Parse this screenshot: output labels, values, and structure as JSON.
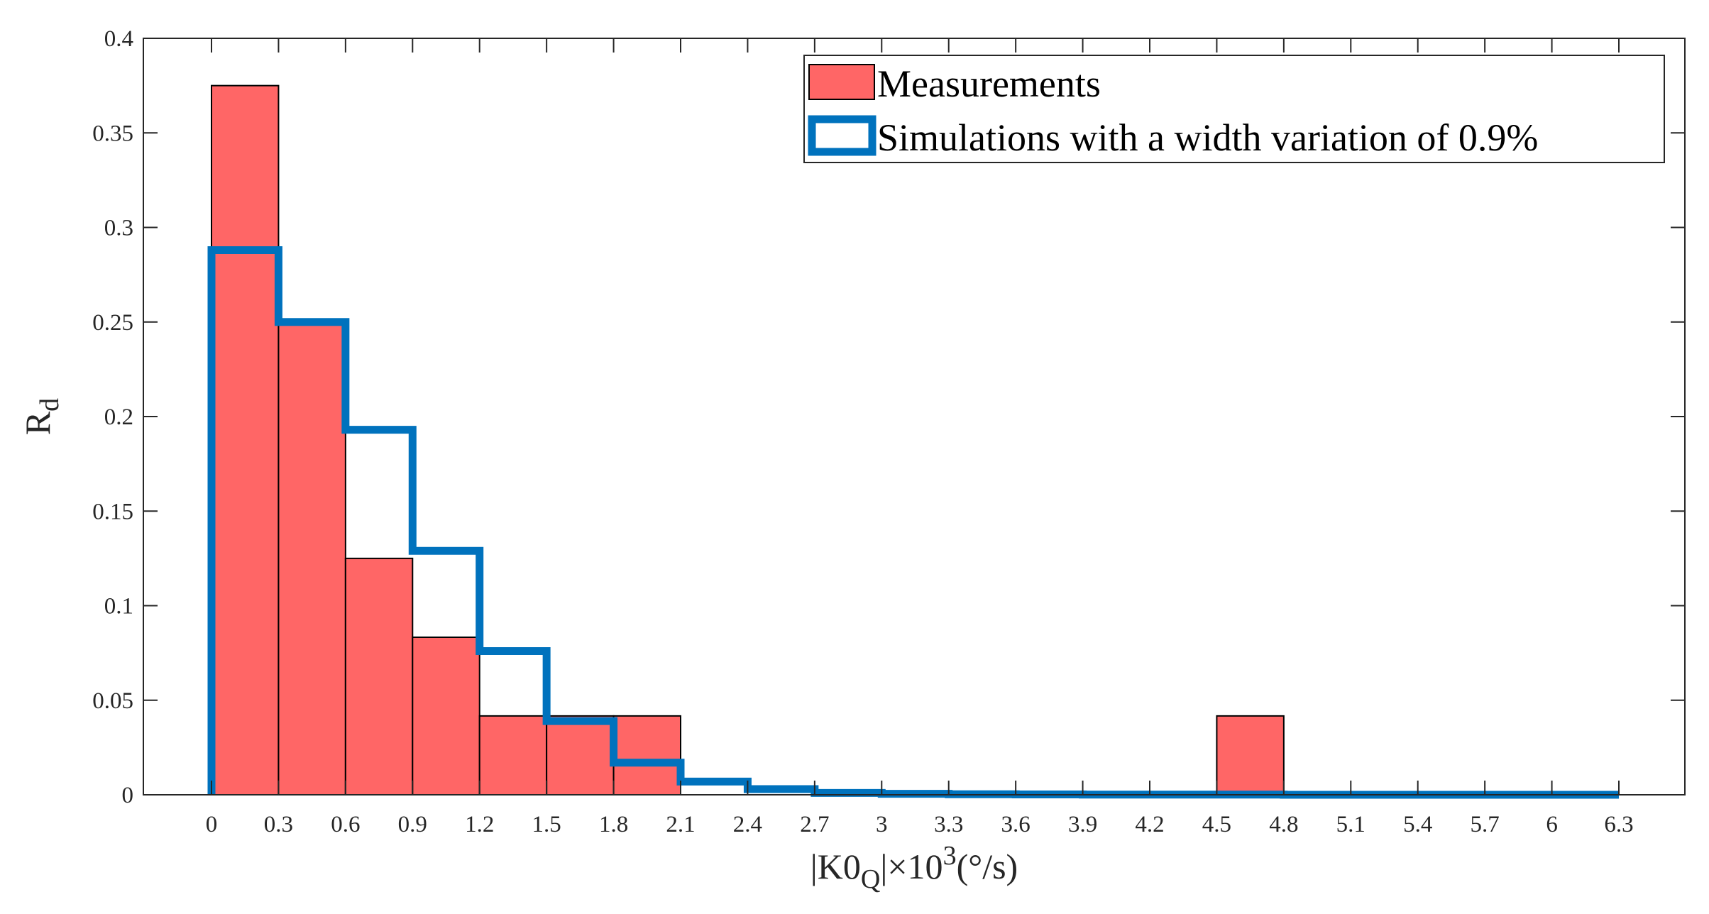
{
  "chart_data": {
    "type": "bar",
    "title": "",
    "xlabel": {
      "base": "|K0",
      "subscript": "Q",
      "mid": "|×10",
      "superscript": "3",
      "tail": "(°/s)"
    },
    "ylabel": {
      "base": "R",
      "subscript": "d"
    },
    "xlim": [
      -0.3,
      6.6
    ],
    "ylim": [
      0,
      0.4
    ],
    "grid": false,
    "legend_position": "top-right",
    "x_ticks": [
      0,
      0.3,
      0.6,
      0.9,
      1.2,
      1.5,
      1.8,
      2.1,
      2.4,
      2.7,
      3,
      3.3,
      3.6,
      3.9,
      4.2,
      4.5,
      4.8,
      5.1,
      5.4,
      5.7,
      6,
      6.3
    ],
    "x_tick_labels": [
      "0",
      "0.3",
      "0.6",
      "0.9",
      "1.2",
      "1.5",
      "1.8",
      "2.1",
      "2.4",
      "2.7",
      "3",
      "3.3",
      "3.6",
      "3.9",
      "4.2",
      "4.5",
      "4.8",
      "5.1",
      "5.4",
      "5.7",
      "6",
      "6.3"
    ],
    "y_ticks": [
      0,
      0.05,
      0.1,
      0.15,
      0.2,
      0.25,
      0.3,
      0.35,
      0.4
    ],
    "y_tick_labels": [
      "0",
      "0.05",
      "0.1",
      "0.15",
      "0.2",
      "0.25",
      "0.3",
      "0.35",
      "0.4"
    ],
    "bin_edges": [
      0,
      0.3,
      0.6,
      0.9,
      1.2,
      1.5,
      1.8,
      2.1,
      2.4,
      2.7,
      3.0,
      3.3,
      3.6,
      3.9,
      4.2,
      4.5,
      4.8,
      5.1,
      5.4,
      5.7,
      6.0,
      6.3
    ],
    "series": [
      {
        "name": "Measurements",
        "style": "bar",
        "color": "#ff6666",
        "edge_color": "#000000",
        "values": [
          0.375,
          0.25,
          0.125,
          0.0833,
          0.0417,
          0.0417,
          0.0417,
          0,
          0,
          0,
          0,
          0,
          0,
          0,
          0,
          0.0417,
          0,
          0,
          0,
          0,
          0
        ]
      },
      {
        "name": "Simulations with a width variation of 0.9%",
        "style": "stairs",
        "color": "#0072bd",
        "values": [
          0.288,
          0.25,
          0.193,
          0.129,
          0.076,
          0.039,
          0.017,
          0.007,
          0.003,
          0.001,
          0.0005,
          0.0003,
          0.0002,
          0.0001,
          0.0001,
          0.0001,
          0,
          0,
          0,
          0,
          0
        ]
      }
    ]
  }
}
